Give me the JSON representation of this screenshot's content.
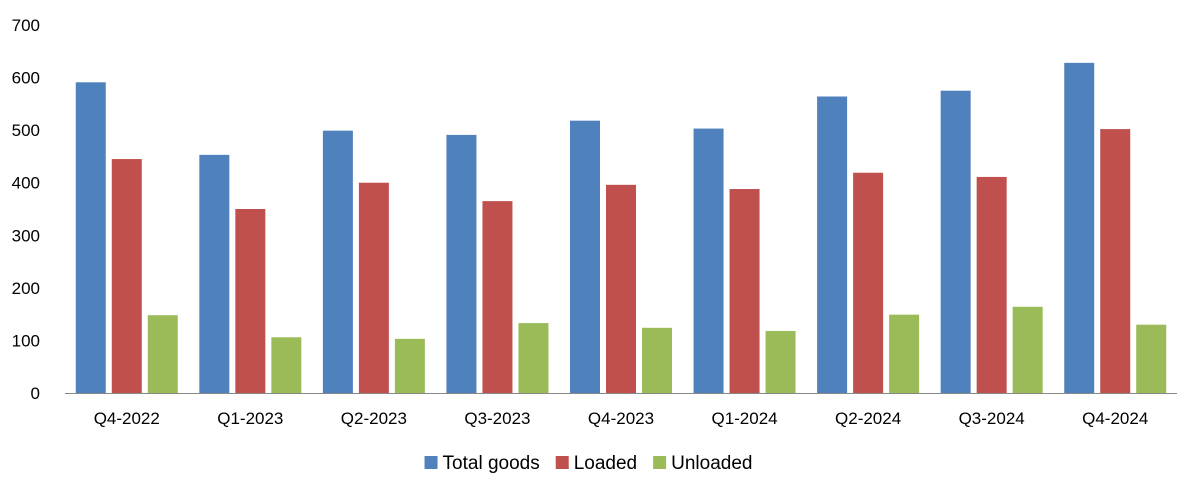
{
  "chart_data": {
    "type": "bar",
    "title": "",
    "xlabel": "",
    "ylabel": "",
    "ylim": [
      0,
      700
    ],
    "yticks": [
      0,
      100,
      200,
      300,
      400,
      500,
      600,
      700
    ],
    "grid": false,
    "legend_position": "bottom",
    "categories": [
      "Q4-2022",
      "Q1-2023",
      "Q2-2023",
      "Q3-2023",
      "Q4-2023",
      "Q1-2024",
      "Q2-2024",
      "Q3-2024",
      "Q4-2024"
    ],
    "series": [
      {
        "name": "Total goods",
        "color": "#4f81bd",
        "values": [
          591,
          453,
          499,
          491,
          518,
          503,
          564,
          575,
          628
        ]
      },
      {
        "name": "Loaded",
        "color": "#c0504d",
        "values": [
          445,
          350,
          400,
          365,
          396,
          388,
          419,
          411,
          502
        ]
      },
      {
        "name": "Unloaded",
        "color": "#9bbb59",
        "values": [
          148,
          106,
          103,
          133,
          124,
          118,
          149,
          164,
          130
        ]
      }
    ]
  }
}
